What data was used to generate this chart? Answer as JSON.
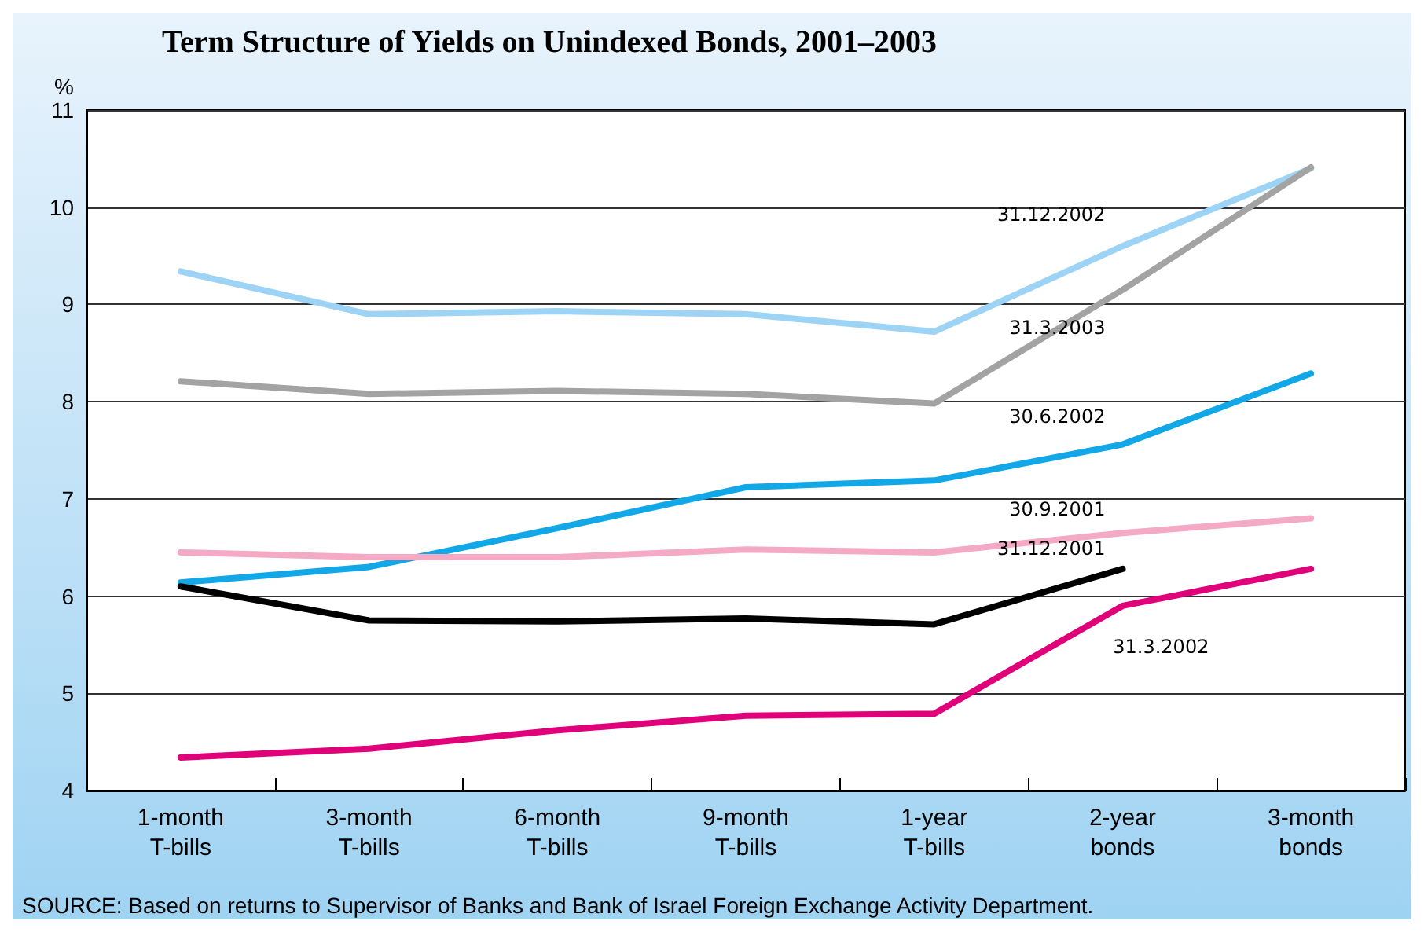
{
  "chart_data": {
    "type": "line",
    "title": "Term Structure of Yields on Unindexed Bonds, 2001–2003",
    "ylabel": "%",
    "categories": [
      "1-month\nT-bills",
      "3-month\nT-bills",
      "6-month\nT-bills",
      "9-month\nT-bills",
      "1-year\nT-bills",
      "2-year\nbonds",
      "3-month\nbonds"
    ],
    "series": [
      {
        "name": "31.12.2002",
        "color": "#9dd3f5",
        "values": [
          9.34,
          8.9,
          8.93,
          8.9,
          8.72,
          9.6,
          10.4
        ]
      },
      {
        "name": "31.3.2003",
        "color": "#a3a3a3",
        "values": [
          8.21,
          8.08,
          8.11,
          8.08,
          7.98,
          9.15,
          10.41
        ]
      },
      {
        "name": "30.6.2002",
        "color": "#12a8e8",
        "values": [
          6.14,
          6.3,
          6.7,
          7.12,
          7.19,
          7.56,
          8.29
        ]
      },
      {
        "name": "30.9.2001",
        "color": "#f4a9c4",
        "values": [
          6.45,
          6.4,
          6.4,
          6.48,
          6.45,
          6.65,
          6.8
        ]
      },
      {
        "name": "31.12.2001",
        "color": "#000000",
        "values": [
          6.1,
          5.75,
          5.74,
          5.77,
          5.71,
          6.28,
          null
        ]
      },
      {
        "name": "31.3.2002",
        "color": "#e0007a",
        "values": [
          4.34,
          4.43,
          4.62,
          4.77,
          4.79,
          5.9,
          6.28
        ]
      }
    ],
    "ylim": [
      4,
      11
    ],
    "yticks": [
      4,
      5,
      6,
      7,
      8,
      9,
      10,
      11
    ],
    "grid": "y",
    "legend": false,
    "marker": "none",
    "line_style": "solid",
    "annotations": [
      "SOURCE: Based on returns to Supervisor of Banks and Bank of Israel Foreign Exchange Activity Department."
    ]
  }
}
